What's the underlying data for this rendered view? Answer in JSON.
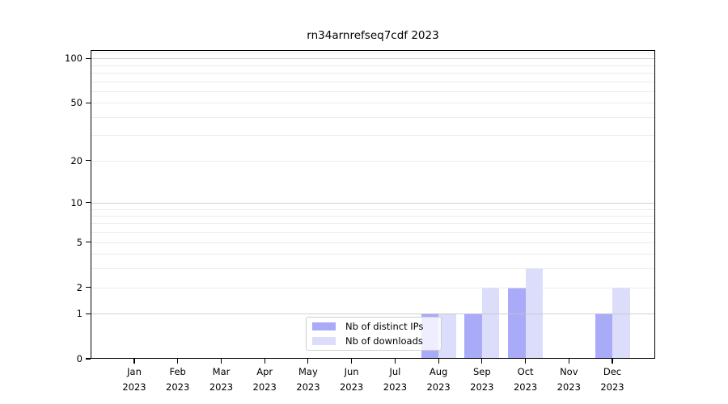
{
  "title": "rn34arnrefseq7cdf 2023",
  "chart_data": {
    "type": "bar",
    "title": "rn34arnrefseq7cdf 2023",
    "categories": [
      "Jan",
      "Feb",
      "Mar",
      "Apr",
      "May",
      "Jun",
      "Jul",
      "Aug",
      "Sep",
      "Oct",
      "Nov",
      "Dec"
    ],
    "category_year": "2023",
    "series": [
      {
        "name": "Nb of distinct IPs",
        "color": "#a9aaf8",
        "values": [
          0,
          0,
          0,
          0,
          0,
          0,
          0,
          1,
          1,
          2,
          0,
          1
        ]
      },
      {
        "name": "Nb of downloads",
        "color": "#dbddfb",
        "values": [
          0,
          0,
          0,
          0,
          0,
          0,
          0,
          1,
          2,
          3,
          0,
          2
        ]
      }
    ],
    "yscale": "log1p",
    "ylim": [
      0,
      113.5
    ],
    "yticks": [
      0,
      1,
      2,
      5,
      10,
      20,
      50,
      100
    ],
    "grid_lines_minor": [
      2,
      3,
      4,
      5,
      6,
      7,
      8,
      9,
      20,
      30,
      40,
      50,
      60,
      70,
      80,
      90,
      110
    ],
    "grid_lines_major": [
      1,
      10,
      100
    ],
    "legend": {
      "position": "lower center",
      "entries": [
        "Nb of distinct IPs",
        "Nb of downloads"
      ]
    },
    "colors": {
      "axis": "#000000",
      "grid_minor": "#e5e5e5",
      "grid_major": "#c5c5c5",
      "background": "#ffffff",
      "bar_distinct_ips": "#a9aaf8",
      "bar_downloads": "#dbddfb"
    }
  }
}
